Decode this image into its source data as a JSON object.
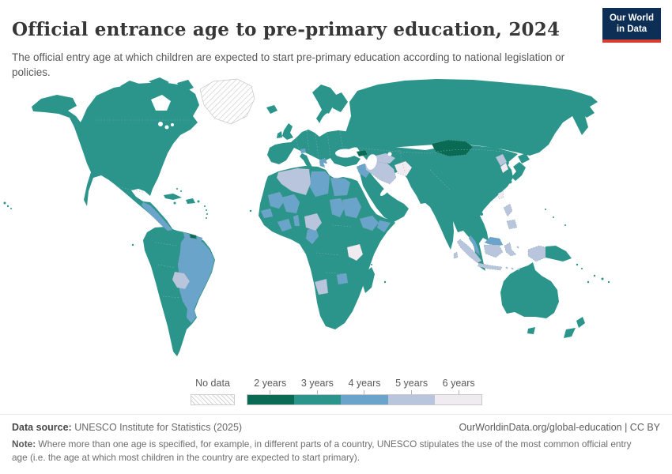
{
  "header": {
    "title": "Official entrance age to pre-primary education, 2024",
    "subtitle": "The official entry age at which children are expected to start pre-primary education according to national legislation or policies.",
    "logo": {
      "line1": "Our World",
      "line2": "in Data"
    }
  },
  "palette": {
    "2": "#0a6b54",
    "3": "#2b948b",
    "4": "#6ba4ca",
    "5": "#b9c5dd",
    "6": "#f0eaf1",
    "no_data_hatch": "#d4d4d4",
    "logo_navy": "#0d2e55",
    "logo_red": "#d63e32"
  },
  "legend": {
    "no_data_label": "No data",
    "items": [
      {
        "key": "2",
        "label": "2 years"
      },
      {
        "key": "3",
        "label": "3 years"
      },
      {
        "key": "4",
        "label": "4 years"
      },
      {
        "key": "5",
        "label": "5 years"
      },
      {
        "key": "6",
        "label": "6 years"
      }
    ]
  },
  "chart_data": {
    "type": "choropleth",
    "title": "Official entrance age to pre-primary education, 2024",
    "unit": "years",
    "legend_categories": [
      "No data",
      "2 years",
      "3 years",
      "4 years",
      "5 years",
      "6 years"
    ],
    "legend_colors": [
      "hatched-white",
      "#0a6b54",
      "#2b948b",
      "#6ba4ca",
      "#b9c5dd",
      "#f0eaf1"
    ],
    "values_by_region": {
      "no_data": [
        "Greenland"
      ],
      "2_years": [
        "Mongolia",
        "Suriname",
        "Georgia"
      ],
      "3_years": [
        "United States",
        "Canada",
        "Mexico",
        "most of South America",
        "most of Europe",
        "Russia",
        "China",
        "India",
        "Turkey",
        "Saudi Arabia",
        "most of Central & Southern Africa",
        "Japan",
        "Australia",
        "New Zealand",
        "Papua New Guinea",
        "Madagascar"
      ],
      "4_years": [
        "Brazil",
        "Guyana",
        "French Guiana",
        "parts of Central America",
        "Libya",
        "Egypt",
        "Sudan",
        "Chad",
        "Mali",
        "Mauritania",
        "Senegal/Guinea area",
        "Ghana/Côte d'Ivoire",
        "Benin/Togo",
        "Cameroon/Gabon",
        "Ethiopia",
        "Somalia",
        "Zimbabwe",
        "Iraq",
        "Greece",
        "Switzerland",
        "Malaysia"
      ],
      "5_years": [
        "Algeria",
        "Nigeria",
        "Namibia",
        "Bolivia",
        "Iran",
        "Turkmenistan",
        "North Korea",
        "Philippines",
        "Indonesia",
        "western New Guinea",
        "Sri Lanka"
      ],
      "6_years": [
        "Afghanistan",
        "Tanzania",
        "South Korea",
        "Taiwan"
      ]
    }
  },
  "footer": {
    "source_label": "Data source:",
    "source_text": " UNESCO Institute for Statistics (2025)",
    "citation": "OurWorldinData.org/global-education | CC BY",
    "note_label": "Note:",
    "note_text": " Where more than one age is specified, for example, in different parts of a country, UNESCO stipulates the use of the most common official entry age (i.e. the age at which most children in the country are expected to start primary)."
  }
}
